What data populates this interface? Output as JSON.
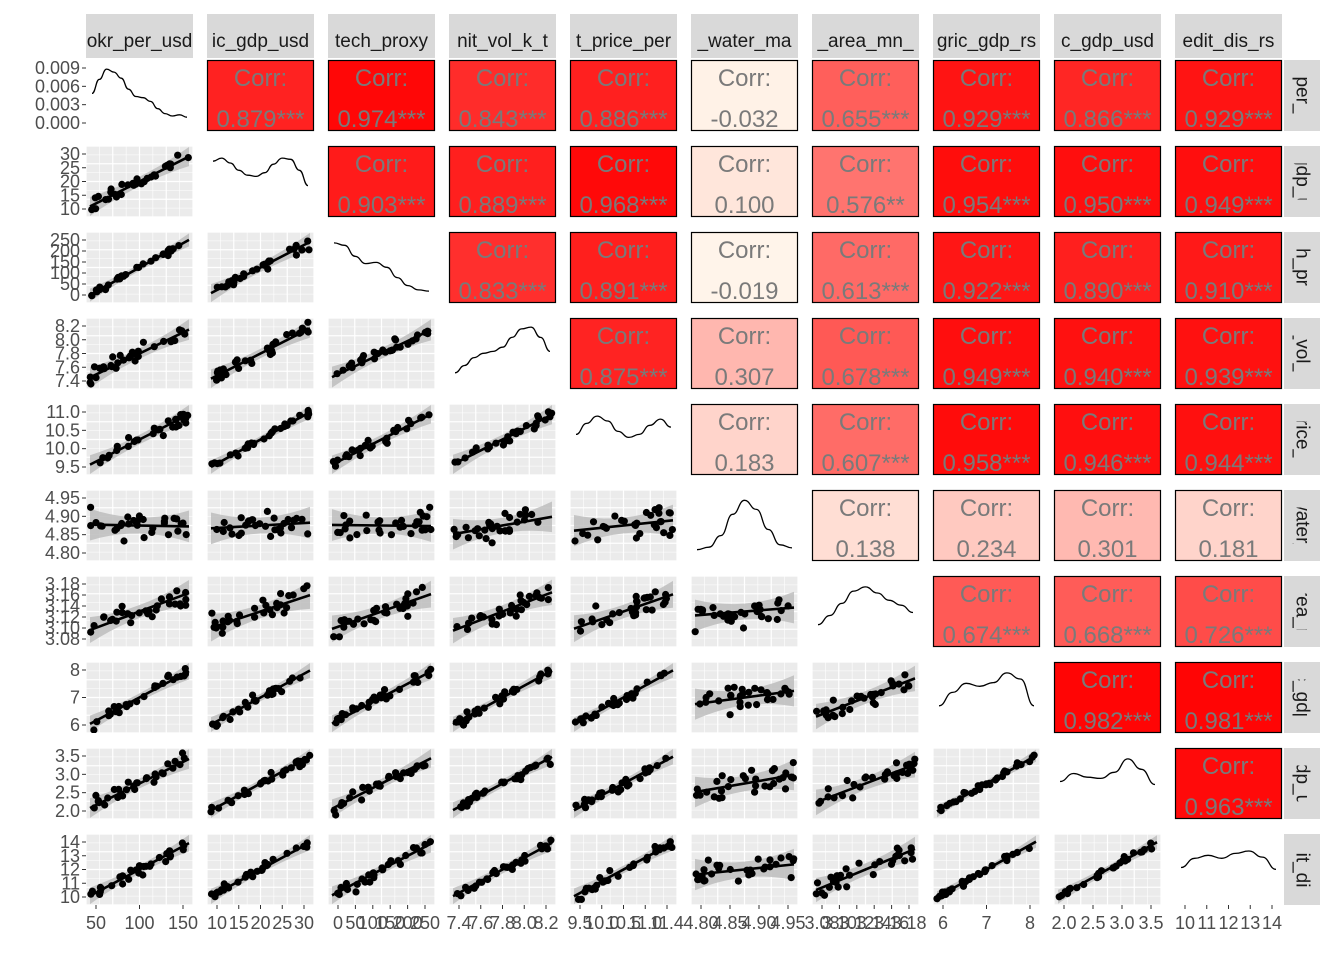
{
  "chart_data": {
    "type": "scatter_matrix",
    "variables": [
      {
        "strip_top": "okr_per_usd",
        "strip_right": "_per_u",
        "x_ticks": [
          "50",
          "100",
          "150"
        ],
        "y_ticks": [
          "0.009",
          "0.006",
          "0.003",
          "0.000"
        ],
        "density": [
          0.55,
          0.78,
          0.95,
          0.9,
          0.8,
          0.62,
          0.5,
          0.48,
          0.42,
          0.3,
          0.22,
          0.18,
          0.2,
          0.16
        ]
      },
      {
        "strip_top": "ic_gdp_usd",
        "strip_right": "gdp_u",
        "x_ticks": [
          "10",
          "15",
          "20",
          "25",
          "30"
        ],
        "y_ticks": [
          "30",
          "25",
          "20",
          "15",
          "10"
        ],
        "density": [
          0.85,
          0.9,
          0.82,
          0.7,
          0.62,
          0.6,
          0.66,
          0.8,
          0.9,
          0.88,
          0.7,
          0.45
        ]
      },
      {
        "strip_top": "tech_proxy",
        "strip_right": "ch_pro",
        "x_ticks": [
          "0",
          "50",
          "100",
          "150",
          "200",
          "250"
        ],
        "y_ticks": [
          "250",
          "200",
          "150",
          "100",
          "50",
          "0"
        ],
        "density": [
          0.92,
          0.88,
          0.7,
          0.58,
          0.6,
          0.52,
          0.35,
          0.22,
          0.15,
          0.13
        ]
      },
      {
        "strip_top": "nit_vol_k_t",
        "strip_right": "t_vol_k",
        "x_ticks": [
          "7.4",
          "7.6",
          "7.8",
          "8.0",
          "8.2"
        ],
        "y_ticks": [
          "8.2",
          "8.0",
          "7.8",
          "7.6",
          "7.4"
        ],
        "density": [
          0.2,
          0.32,
          0.45,
          0.52,
          0.55,
          0.62,
          0.78,
          0.92,
          0.95,
          0.78,
          0.55
        ]
      },
      {
        "strip_top": "t_price_per",
        "strip_right": "price_p",
        "x_ticks": [
          "9.5",
          "10.0",
          "10.5",
          "11.0",
          "11.4"
        ],
        "y_ticks": [
          "11.0",
          "10.5",
          "10.0",
          "9.5"
        ],
        "density": [
          0.6,
          0.78,
          0.9,
          0.82,
          0.65,
          0.55,
          0.6,
          0.75,
          0.85,
          0.72
        ]
      },
      {
        "strip_top": "_water_ma",
        "strip_right": "water_",
        "x_ticks": [
          "4.80",
          "4.85",
          "4.90",
          "4.95"
        ],
        "y_ticks": [
          "4.95",
          "4.90",
          "4.85",
          "4.80"
        ],
        "density": [
          0.12,
          0.16,
          0.35,
          0.7,
          0.93,
          0.78,
          0.45,
          0.2,
          0.15
        ]
      },
      {
        "strip_top": "_area_mn_",
        "strip_right": "area_m",
        "x_ticks": [
          "3.08",
          "3.10",
          "3.12",
          "3.14",
          "3.16",
          "3.18"
        ],
        "y_ticks": [
          "3.18",
          "3.16",
          "3.14",
          "3.12",
          "3.10",
          "3.08"
        ],
        "density": [
          0.3,
          0.45,
          0.65,
          0.85,
          0.92,
          0.82,
          0.7,
          0.62,
          0.5
        ]
      },
      {
        "strip_top": "gric_gdp_rs",
        "strip_right": "c_gdp",
        "x_ticks": [
          "6",
          "7",
          "8"
        ],
        "y_ticks": [
          "8",
          "7",
          "6"
        ],
        "density": [
          0.38,
          0.6,
          0.75,
          0.7,
          0.76,
          0.92,
          0.82,
          0.38
        ]
      },
      {
        "strip_top": "c_gdp_usd",
        "strip_right": "gdp_us",
        "x_ticks": [
          "2.0",
          "2.5",
          "3.0",
          "3.5"
        ],
        "y_ticks": [
          "3.5",
          "3.0",
          "2.5",
          "2.0"
        ],
        "density": [
          0.55,
          0.68,
          0.62,
          0.6,
          0.7,
          0.92,
          0.75,
          0.5
        ]
      },
      {
        "strip_top": "edit_dis_rs",
        "strip_right": "dit_dis",
        "x_ticks": [
          "10",
          "11",
          "12",
          "13",
          "14"
        ],
        "y_ticks": [
          "14",
          "13",
          "12",
          "11",
          "10"
        ],
        "density": [
          0.55,
          0.7,
          0.75,
          0.7,
          0.78,
          0.82,
          0.72,
          0.52
        ]
      }
    ],
    "correlations": [
      {
        "i": 0,
        "j": 1,
        "r": 0.879,
        "label": "0.879***"
      },
      {
        "i": 0,
        "j": 2,
        "r": 0.974,
        "label": "0.974***"
      },
      {
        "i": 0,
        "j": 3,
        "r": 0.843,
        "label": "0.843***"
      },
      {
        "i": 0,
        "j": 4,
        "r": 0.886,
        "label": "0.886***"
      },
      {
        "i": 0,
        "j": 5,
        "r": -0.032,
        "label": "-0.032"
      },
      {
        "i": 0,
        "j": 6,
        "r": 0.655,
        "label": "0.655***"
      },
      {
        "i": 0,
        "j": 7,
        "r": 0.929,
        "label": "0.929***"
      },
      {
        "i": 0,
        "j": 8,
        "r": 0.866,
        "label": "0.866***"
      },
      {
        "i": 0,
        "j": 9,
        "r": 0.929,
        "label": "0.929***"
      },
      {
        "i": 1,
        "j": 2,
        "r": 0.903,
        "label": "0.903***"
      },
      {
        "i": 1,
        "j": 3,
        "r": 0.889,
        "label": "0.889***"
      },
      {
        "i": 1,
        "j": 4,
        "r": 0.968,
        "label": "0.968***"
      },
      {
        "i": 1,
        "j": 5,
        "r": 0.1,
        "label": "0.100"
      },
      {
        "i": 1,
        "j": 6,
        "r": 0.576,
        "label": "0.576**"
      },
      {
        "i": 1,
        "j": 7,
        "r": 0.954,
        "label": "0.954***"
      },
      {
        "i": 1,
        "j": 8,
        "r": 0.95,
        "label": "0.950***"
      },
      {
        "i": 1,
        "j": 9,
        "r": 0.949,
        "label": "0.949***"
      },
      {
        "i": 2,
        "j": 3,
        "r": 0.833,
        "label": "0.833***"
      },
      {
        "i": 2,
        "j": 4,
        "r": 0.891,
        "label": "0.891***"
      },
      {
        "i": 2,
        "j": 5,
        "r": -0.019,
        "label": "-0.019"
      },
      {
        "i": 2,
        "j": 6,
        "r": 0.613,
        "label": "0.613***"
      },
      {
        "i": 2,
        "j": 7,
        "r": 0.922,
        "label": "0.922***"
      },
      {
        "i": 2,
        "j": 8,
        "r": 0.89,
        "label": "0.890***"
      },
      {
        "i": 2,
        "j": 9,
        "r": 0.91,
        "label": "0.910***"
      },
      {
        "i": 3,
        "j": 4,
        "r": 0.875,
        "label": "0.875***"
      },
      {
        "i": 3,
        "j": 5,
        "r": 0.307,
        "label": "0.307"
      },
      {
        "i": 3,
        "j": 6,
        "r": 0.678,
        "label": "0.678***"
      },
      {
        "i": 3,
        "j": 7,
        "r": 0.949,
        "label": "0.949***"
      },
      {
        "i": 3,
        "j": 8,
        "r": 0.94,
        "label": "0.940***"
      },
      {
        "i": 3,
        "j": 9,
        "r": 0.939,
        "label": "0.939***"
      },
      {
        "i": 4,
        "j": 5,
        "r": 0.183,
        "label": "0.183"
      },
      {
        "i": 4,
        "j": 6,
        "r": 0.607,
        "label": "0.607***"
      },
      {
        "i": 4,
        "j": 7,
        "r": 0.958,
        "label": "0.958***"
      },
      {
        "i": 4,
        "j": 8,
        "r": 0.946,
        "label": "0.946***"
      },
      {
        "i": 4,
        "j": 9,
        "r": 0.944,
        "label": "0.944***"
      },
      {
        "i": 5,
        "j": 6,
        "r": 0.138,
        "label": "0.138"
      },
      {
        "i": 5,
        "j": 7,
        "r": 0.234,
        "label": "0.234"
      },
      {
        "i": 5,
        "j": 8,
        "r": 0.301,
        "label": "0.301"
      },
      {
        "i": 5,
        "j": 9,
        "r": 0.181,
        "label": "0.181"
      },
      {
        "i": 6,
        "j": 7,
        "r": 0.674,
        "label": "0.674***"
      },
      {
        "i": 6,
        "j": 8,
        "r": 0.668,
        "label": "0.668***"
      },
      {
        "i": 6,
        "j": 9,
        "r": 0.726,
        "label": "0.726***"
      },
      {
        "i": 7,
        "j": 8,
        "r": 0.982,
        "label": "0.982***"
      },
      {
        "i": 7,
        "j": 9,
        "r": 0.981,
        "label": "0.981***"
      },
      {
        "i": 8,
        "j": 9,
        "r": 0.963,
        "label": "0.963***"
      }
    ],
    "corr_heading": "Corr:",
    "colors": {
      "corr_high": "#ff0000",
      "corr_low": "#fff7ec",
      "panel_bg": "#ebebeb",
      "strip_bg": "#d9d9d9",
      "fit_line": "#000000",
      "ci_band": "#bdbdbd",
      "points": "#000000"
    }
  }
}
